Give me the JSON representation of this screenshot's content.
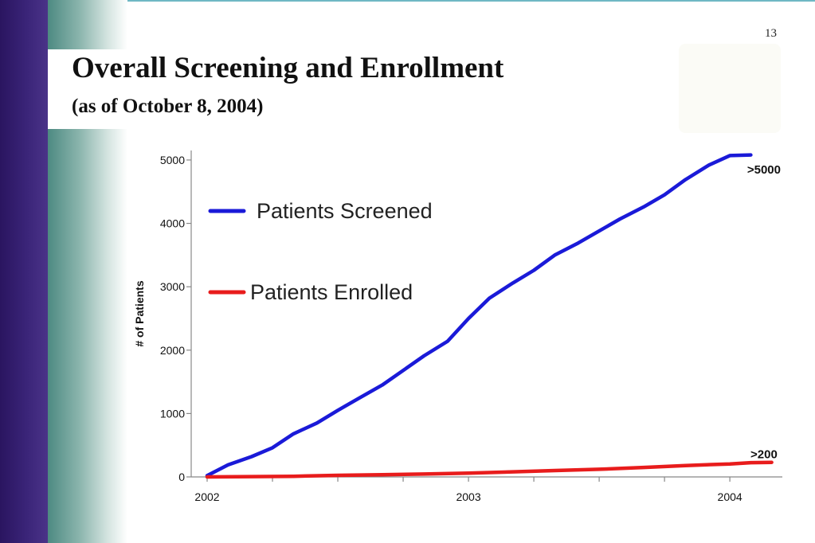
{
  "slide": {
    "page_number": "13",
    "title": "Overall Screening and Enrollment",
    "subtitle": "(as of October 8, 2004)"
  },
  "colors": {
    "sidebar_purple": "#3a2478",
    "sidebar_teal": "#4d8a82",
    "screened": "#1a1ad8",
    "enrolled": "#e81c1c"
  },
  "chart_data": {
    "type": "line",
    "title": "",
    "xlabel": "",
    "ylabel": "# of Patients",
    "x_ticks": [
      "2002",
      "2003",
      "2004"
    ],
    "xlim": [
      2002.0,
      2004.16
    ],
    "y_ticks": [
      "0",
      "1000",
      "2000",
      "3000",
      "4000",
      "5000"
    ],
    "ylim": [
      0,
      5150
    ],
    "grid": false,
    "legend_position": "top-left",
    "series": [
      {
        "name": "Patients Screened",
        "color": "#1a1ad8",
        "x": [
          2002.0,
          2002.08,
          2002.17,
          2002.25,
          2002.33,
          2002.42,
          2002.5,
          2002.58,
          2002.67,
          2002.75,
          2002.83,
          2002.92,
          2003.0,
          2003.08,
          2003.17,
          2003.25,
          2003.33,
          2003.42,
          2003.5,
          2003.58,
          2003.67,
          2003.75,
          2003.83,
          2003.92,
          2004.0,
          2004.08
        ],
        "y": [
          20,
          190,
          320,
          460,
          680,
          850,
          1050,
          1240,
          1450,
          1680,
          1910,
          2140,
          2500,
          2820,
          3060,
          3260,
          3500,
          3690,
          3880,
          4070,
          4260,
          4450,
          4690,
          4920,
          5070,
          5080
        ]
      },
      {
        "name": "Patients Enrolled",
        "color": "#e81c1c",
        "x": [
          2002.0,
          2002.17,
          2002.33,
          2002.5,
          2002.67,
          2002.83,
          2003.0,
          2003.17,
          2003.33,
          2003.5,
          2003.67,
          2003.83,
          2004.0,
          2004.08,
          2004.16
        ],
        "y": [
          0,
          5,
          10,
          25,
          35,
          45,
          60,
          80,
          100,
          120,
          150,
          180,
          205,
          225,
          230
        ]
      }
    ],
    "annotations": [
      {
        "text": ">5000",
        "x": 2004.1,
        "y": 4850
      },
      {
        "text": ">200",
        "x": 2004.1,
        "y": 360
      }
    ]
  }
}
